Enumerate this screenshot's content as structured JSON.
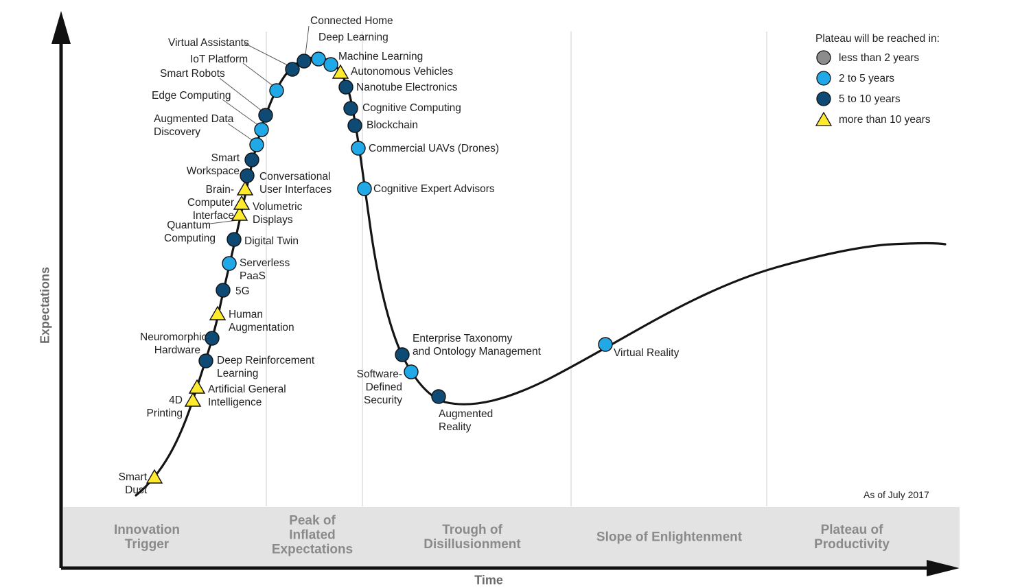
{
  "axes": {
    "y_title": "Expectations",
    "x_title": "Time"
  },
  "phases": [
    {
      "name": "Innovation\nTrigger"
    },
    {
      "name": "Peak of\nInflated\nExpectations"
    },
    {
      "name": "Trough of\nDisillusionment"
    },
    {
      "name": "Slope of Enlightenment"
    },
    {
      "name": "Plateau of\nProductivity"
    }
  ],
  "legend": {
    "title": "Plateau will be reached in:",
    "items": [
      {
        "label": "less than 2 years",
        "symbol": "circle",
        "color": "#8c8c8c"
      },
      {
        "label": "2 to 5 years",
        "symbol": "circle",
        "color": "#21a8e6"
      },
      {
        "label": "5 to 10 years",
        "symbol": "circle",
        "color": "#0e4a73"
      },
      {
        "label": "more than 10 years",
        "symbol": "triangle",
        "color": "#ffea2e"
      }
    ]
  },
  "as_of": "As of July 2017",
  "technologies": [
    {
      "name": "Smart Dust",
      "plateau": "more than 10 years"
    },
    {
      "name": "4D Printing",
      "plateau": "more than 10 years"
    },
    {
      "name": "Artificial General\nIntelligence",
      "plateau": "more than 10 years"
    },
    {
      "name": "Deep Reinforcement\nLearning",
      "plateau": "5 to 10 years"
    },
    {
      "name": "Neuromorphic\nHardware",
      "plateau": "5 to 10 years"
    },
    {
      "name": "Human\nAugmentation",
      "plateau": "more than 10 years"
    },
    {
      "name": "5G",
      "plateau": "5 to 10 years"
    },
    {
      "name": "Serverless\nPaaS",
      "plateau": "2 to 5 years"
    },
    {
      "name": "Digital Twin",
      "plateau": "5 to 10 years"
    },
    {
      "name": "Quantum\nComputing",
      "plateau": "more than 10 years"
    },
    {
      "name": "Volumetric\nDisplays",
      "plateau": "more than 10 years"
    },
    {
      "name": "Brain-Computer\nInterface",
      "plateau": "more than 10 years"
    },
    {
      "name": "Conversational\nUser Interfaces",
      "plateau": "5 to 10 years"
    },
    {
      "name": "Smart Workspace",
      "plateau": "5 to 10 years"
    },
    {
      "name": "Augmented Data\nDiscovery",
      "plateau": "2 to 5 years"
    },
    {
      "name": "Edge Computing",
      "plateau": "2 to 5 years"
    },
    {
      "name": "Smart Robots",
      "plateau": "5 to 10 years"
    },
    {
      "name": "IoT Platform",
      "plateau": "2 to 5 years"
    },
    {
      "name": "Virtual Assistants",
      "plateau": "5 to 10 years"
    },
    {
      "name": "Connected Home",
      "plateau": "5 to 10 years"
    },
    {
      "name": "Deep Learning",
      "plateau": "2 to 5 years"
    },
    {
      "name": "Machine Learning",
      "plateau": "2 to 5 years"
    },
    {
      "name": "Autonomous Vehicles",
      "plateau": "more than 10 years"
    },
    {
      "name": "Nanotube Electronics",
      "plateau": "5 to 10 years"
    },
    {
      "name": "Cognitive Computing",
      "plateau": "5 to 10 years"
    },
    {
      "name": "Blockchain",
      "plateau": "5 to 10 years"
    },
    {
      "name": "Commercial UAVs (Drones)",
      "plateau": "2 to 5 years"
    },
    {
      "name": "Cognitive Expert Advisors",
      "plateau": "2 to 5 years"
    },
    {
      "name": "Enterprise Taxonomy\nand Ontology Management",
      "plateau": "5 to 10 years"
    },
    {
      "name": "Software-Defined\nSecurity",
      "plateau": "2 to 5 years"
    },
    {
      "name": "Augmented\nReality",
      "plateau": "5 to 10 years"
    },
    {
      "name": "Virtual Reality",
      "plateau": "2 to 5 years"
    }
  ]
}
